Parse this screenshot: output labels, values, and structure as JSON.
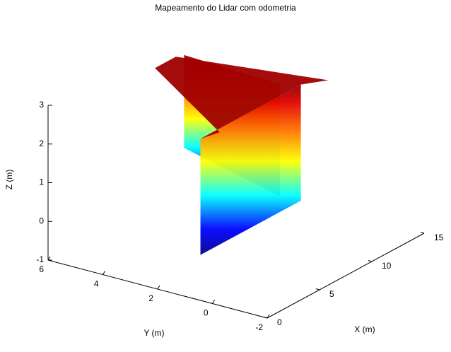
{
  "chart_data": {
    "type": "scatter3d",
    "title": "Mapeamento do Lidar com odometria",
    "xlabel": "X (m)",
    "ylabel": "Y (m)",
    "zlabel": "Z (m)",
    "xlim": [
      0,
      15
    ],
    "ylim": [
      -2,
      6
    ],
    "zlim": [
      -1,
      3
    ],
    "xticks": [
      0,
      5,
      10,
      15
    ],
    "yticks": [
      -2,
      0,
      2,
      4,
      6
    ],
    "zticks": [
      -1,
      0,
      1,
      2,
      3
    ],
    "colormap": "jet",
    "faces": [
      {
        "x": [
          13,
          13,
          13,
          13
        ],
        "y": [
          6,
          2.5,
          2.5,
          6
        ],
        "z": [
          0,
          -0.6,
          2.3,
          2.4
        ]
      },
      {
        "x": [
          5.4,
          15,
          15,
          5.4
        ],
        "y": [
          2.5,
          2.5,
          2.5,
          2.5
        ],
        "z": [
          -1,
          -1,
          2,
          2
        ]
      },
      {
        "x": [
          5.4,
          15,
          15,
          13,
          11,
          5.4
        ],
        "y": [
          2.5,
          2.5,
          1.5,
          6.3,
          6.3,
          1.8
        ],
        "z": [
          2,
          2,
          2.3,
          2.3,
          2.3,
          2.3
        ],
        "color": "#a00000"
      }
    ]
  }
}
